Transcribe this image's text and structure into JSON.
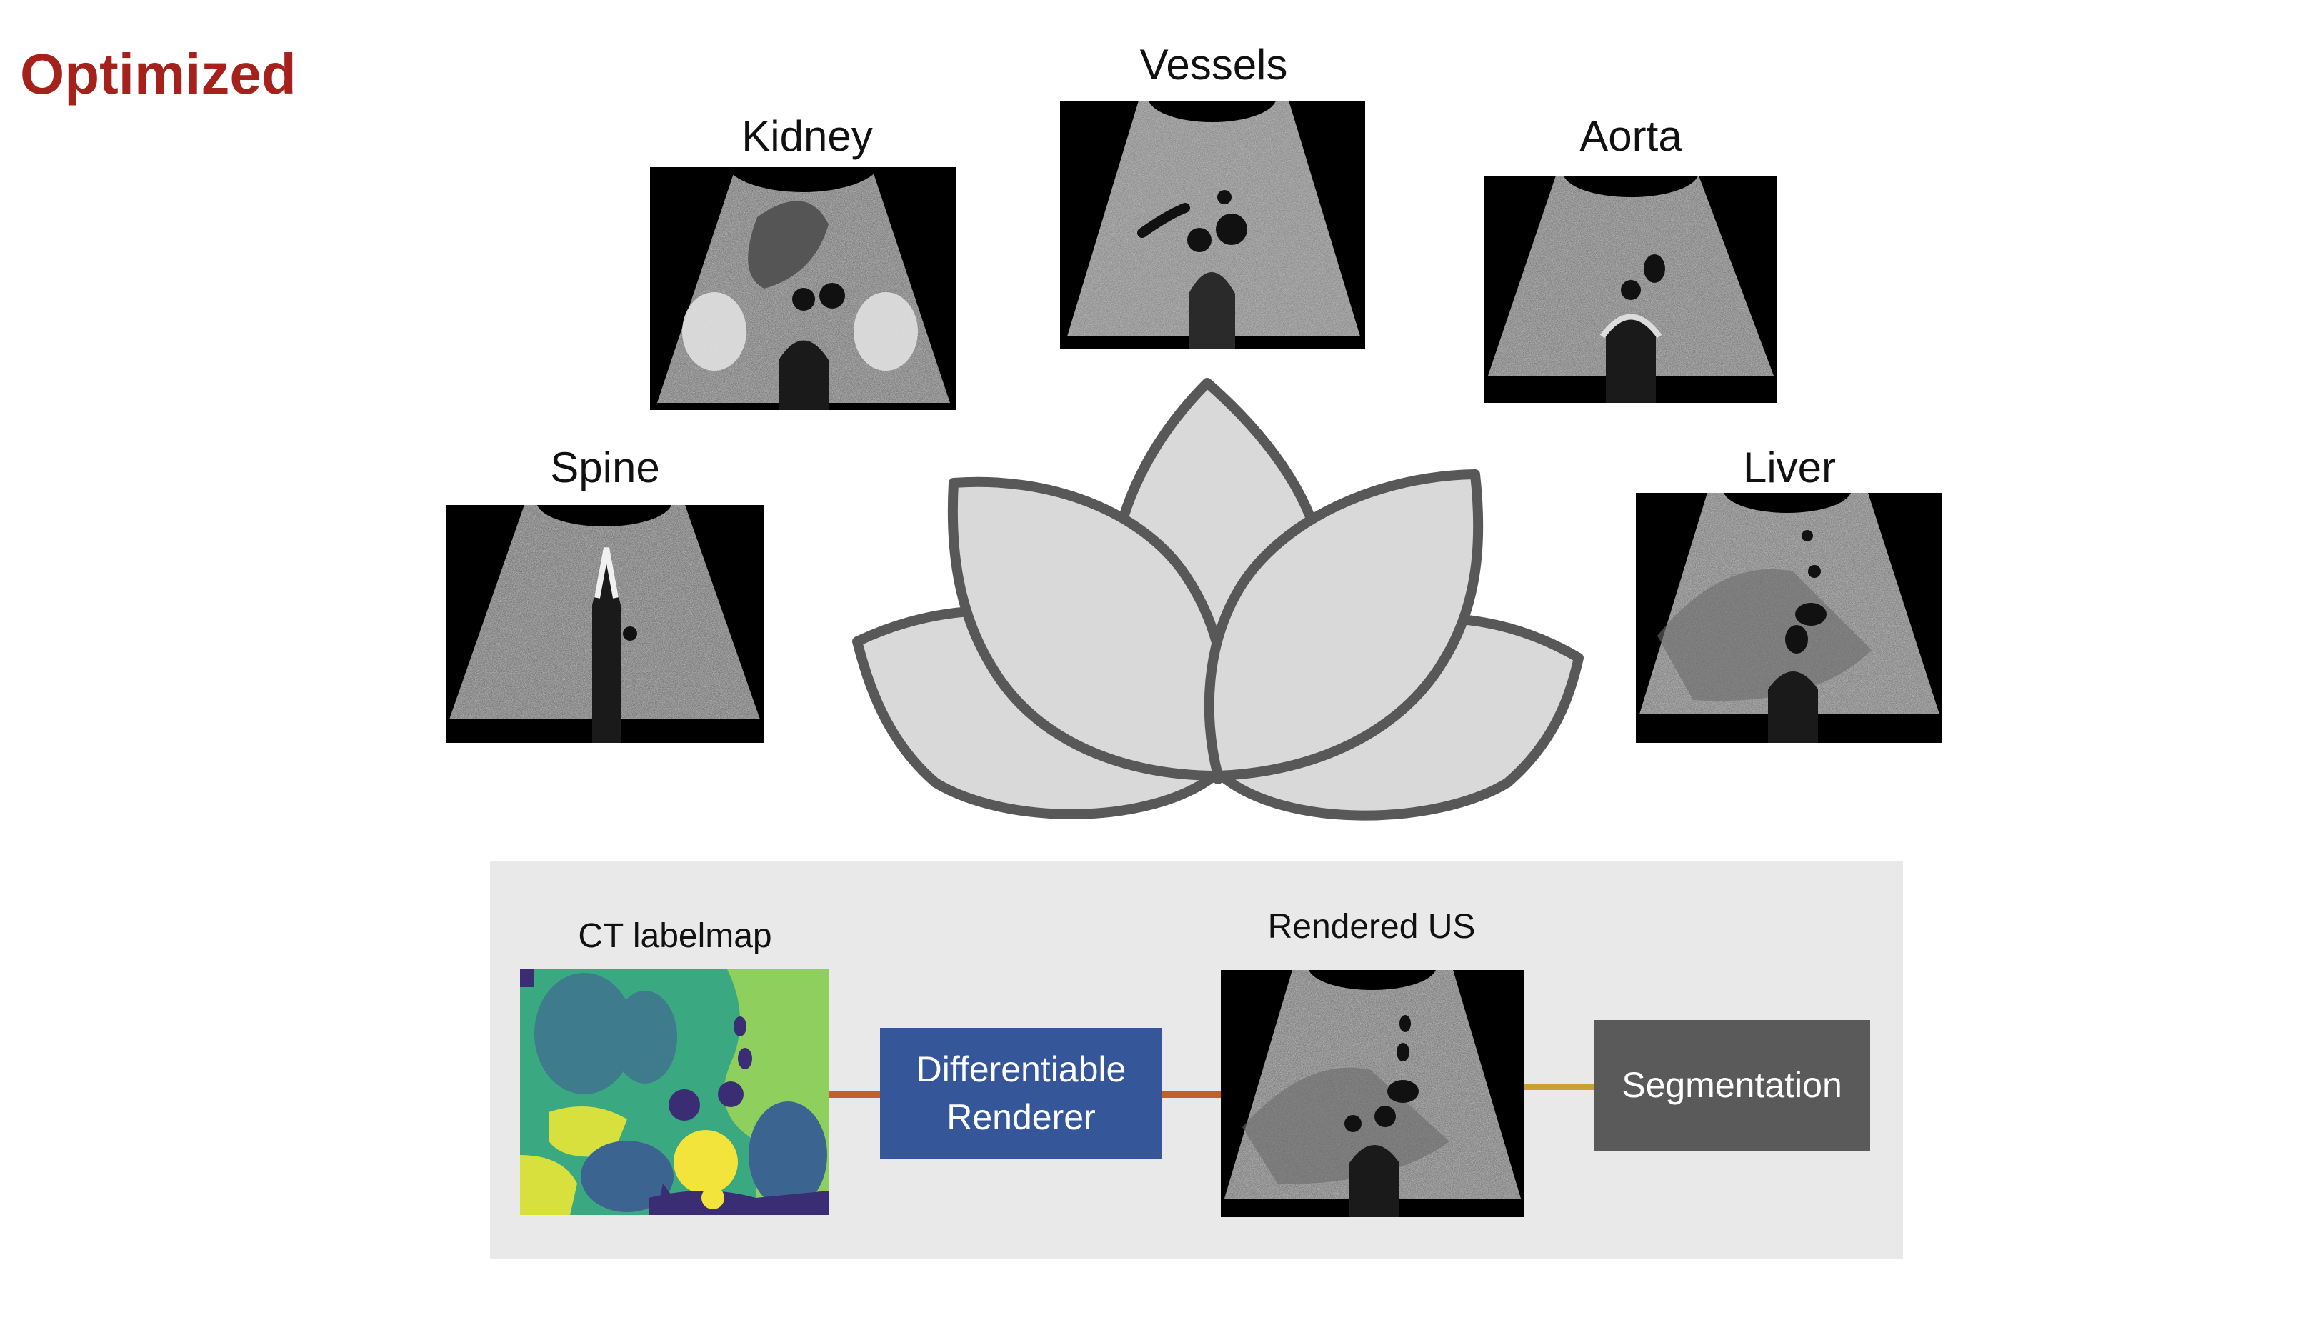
{
  "title": "Optimized",
  "organ_images": [
    {
      "label": "Kidney"
    },
    {
      "label": "Vessels"
    },
    {
      "label": "Aorta"
    },
    {
      "label": "Spine"
    },
    {
      "label": "Liver"
    }
  ],
  "pipeline": {
    "ct_label": "CT labelmap",
    "renderer_line1": "Differentiable",
    "renderer_line2": "Renderer",
    "rendered_label": "Rendered US",
    "segmentation_label": "Segmentation"
  },
  "colors": {
    "title": "#a4221b",
    "renderer_box": "#35579a",
    "segmentation_box": "#5a5a5a",
    "connector_orange": "#c0612b",
    "connector_gold": "#c9a032",
    "lotus_fill": "#d9d9d9",
    "lotus_stroke": "#585858",
    "panel_bg": "#e9e9e9"
  },
  "icons": {
    "lotus": "lotus-icon"
  }
}
